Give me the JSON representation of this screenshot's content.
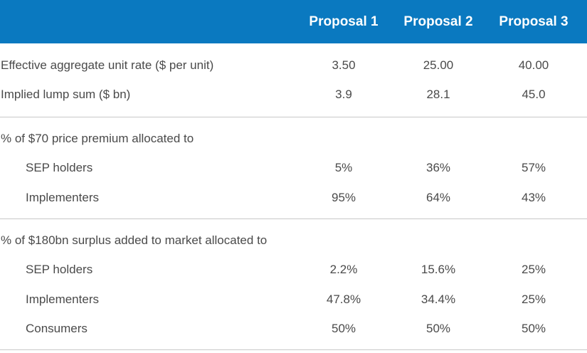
{
  "header": {
    "columns": [
      "Proposal 1",
      "Proposal 2",
      "Proposal 3"
    ]
  },
  "section1": {
    "rows": [
      {
        "label": "Effective aggregate unit rate ($ per unit)",
        "values": [
          "3.50",
          "25.00",
          "40.00"
        ]
      },
      {
        "label": "Implied lump sum ($ bn)",
        "values": [
          "3.9",
          "28.1",
          "45.0"
        ]
      }
    ]
  },
  "section2": {
    "title": "% of $70 price premium allocated to",
    "rows": [
      {
        "label": "SEP holders",
        "values": [
          "5%",
          "36%",
          "57%"
        ]
      },
      {
        "label": "Implementers",
        "values": [
          "95%",
          "64%",
          "43%"
        ]
      }
    ]
  },
  "section3": {
    "title": "% of $180bn surplus added to market allocated to",
    "rows": [
      {
        "label": "SEP holders",
        "values": [
          "2.2%",
          "15.6%",
          "25%"
        ]
      },
      {
        "label": "Implementers",
        "values": [
          "47.8%",
          "34.4%",
          "25%"
        ]
      },
      {
        "label": "Consumers",
        "values": [
          "50%",
          "50%",
          "50%"
        ]
      }
    ]
  },
  "colors": {
    "header_bg": "#0a79c0",
    "header_text": "#ffffff",
    "body_text": "#4a4a4a",
    "divider": "#c8c8c8"
  }
}
